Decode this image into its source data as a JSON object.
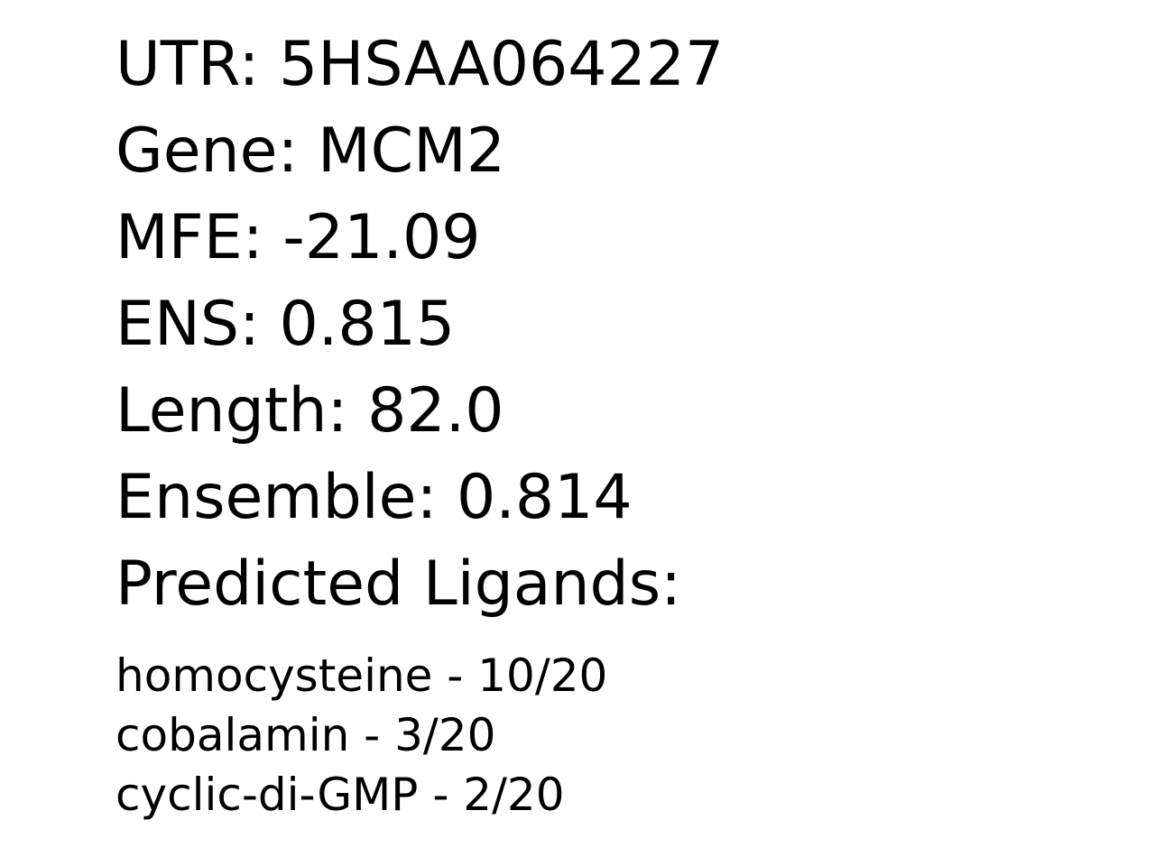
{
  "info": {
    "utr": "UTR: 5HSAA064227",
    "gene": "Gene: MCM2",
    "mfe": "MFE: -21.09",
    "ens": "ENS: 0.815",
    "length": "Length: 82.0",
    "ensemble": "Ensemble: 0.814",
    "ligands_heading": "Predicted Ligands:"
  },
  "ligands": [
    "homocysteine - 10/20",
    "cobalamin - 3/20",
    "cyclic-di-GMP - 2/20"
  ]
}
